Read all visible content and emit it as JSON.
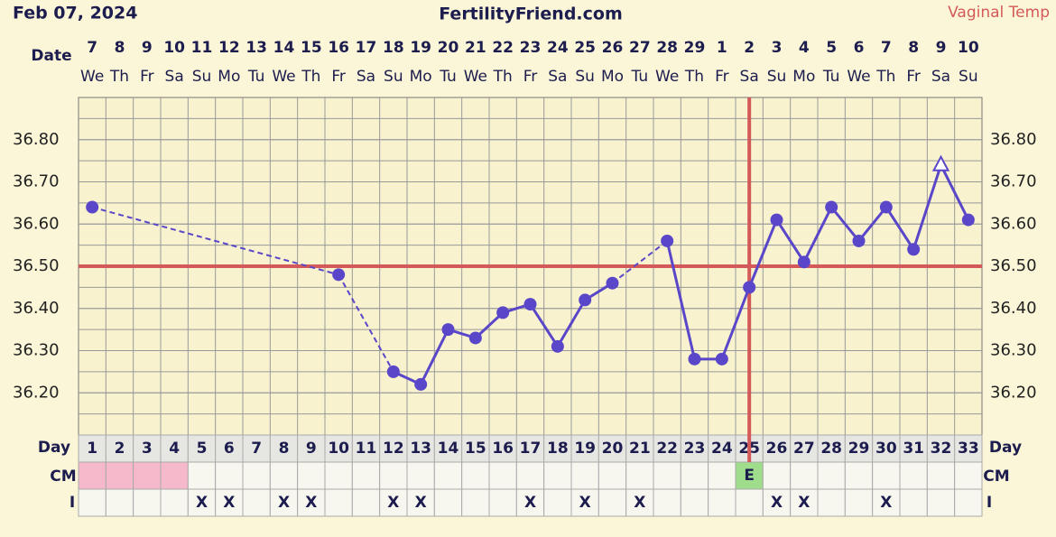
{
  "chart_data": {
    "type": "line",
    "title": "FertilityFriend.com",
    "date_text": "Feb 07, 2024",
    "date_label": "Date",
    "day_label": "Day",
    "cm_label": "CM",
    "i_label": "I",
    "dates": [
      "7",
      "8",
      "9",
      "10",
      "11",
      "12",
      "13",
      "14",
      "15",
      "16",
      "17",
      "18",
      "19",
      "20",
      "21",
      "22",
      "23",
      "24",
      "25",
      "26",
      "27",
      "28",
      "29",
      "1",
      "2",
      "3",
      "4",
      "5",
      "6",
      "7",
      "8",
      "9",
      "10"
    ],
    "weekdays": [
      "We",
      "Th",
      "Fr",
      "Sa",
      "Su",
      "Mo",
      "Tu",
      "We",
      "Th",
      "Fr",
      "Sa",
      "Su",
      "Mo",
      "Tu",
      "We",
      "Th",
      "Fr",
      "Sa",
      "Su",
      "Mo",
      "Tu",
      "We",
      "Th",
      "Fr",
      "Sa",
      "Su",
      "Mo",
      "Tu",
      "We",
      "Th",
      "Fr",
      "Sa",
      "Su"
    ],
    "categories": [
      1,
      2,
      3,
      4,
      5,
      6,
      7,
      8,
      9,
      10,
      11,
      12,
      13,
      14,
      15,
      16,
      17,
      18,
      19,
      20,
      21,
      22,
      23,
      24,
      25,
      26,
      27,
      28,
      29,
      30,
      31,
      32,
      33
    ],
    "series": [
      {
        "name": "Vaginal Temp",
        "color": "#5a46c8",
        "values": [
          36.64,
          null,
          null,
          null,
          null,
          null,
          null,
          null,
          null,
          36.48,
          null,
          36.25,
          36.22,
          36.35,
          36.33,
          36.39,
          36.41,
          36.31,
          36.42,
          36.46,
          null,
          36.56,
          36.28,
          36.28,
          36.45,
          36.61,
          36.51,
          36.64,
          36.56,
          36.64,
          36.54,
          36.74,
          36.61
        ],
        "markers": [
          "circle",
          null,
          null,
          null,
          null,
          null,
          null,
          null,
          null,
          "circle",
          null,
          "circle",
          "circle",
          "circle",
          "circle",
          "circle",
          "circle",
          "circle",
          "circle",
          "circle",
          null,
          "circle",
          "circle",
          "circle",
          "circle",
          "circle",
          "circle",
          "circle",
          "circle",
          "circle",
          "circle",
          "open-triangle",
          "circle"
        ]
      }
    ],
    "ylim": [
      36.1,
      36.9
    ],
    "yticks": [
      {
        "value": 36.2,
        "label": "36.20"
      },
      {
        "value": 36.3,
        "label": "36.30"
      },
      {
        "value": 36.4,
        "label": "36.40"
      },
      {
        "value": 36.5,
        "label": "36.50"
      },
      {
        "value": 36.6,
        "label": "36.60"
      },
      {
        "value": 36.7,
        "label": "36.70"
      },
      {
        "value": 36.8,
        "label": "36.80"
      }
    ],
    "coverline": 36.5,
    "coverline_color": "#d45a5a",
    "ovulation_day": 25,
    "cm": [
      null,
      null,
      null,
      null,
      null,
      null,
      null,
      null,
      null,
      null,
      null,
      null,
      null,
      null,
      null,
      null,
      null,
      null,
      null,
      null,
      null,
      null,
      null,
      null,
      "E",
      null,
      null,
      null,
      null,
      null,
      null,
      null,
      null
    ],
    "cm_colors": [
      "#f6b9cc",
      "#f6b9cc",
      "#f6b9cc",
      "#f6b9cc",
      null,
      null,
      null,
      null,
      null,
      null,
      null,
      null,
      null,
      null,
      null,
      null,
      null,
      null,
      null,
      null,
      null,
      null,
      null,
      null,
      "#9fdc8c",
      null,
      null,
      null,
      null,
      null,
      null,
      null,
      null
    ],
    "intercourse": [
      null,
      null,
      null,
      null,
      "X",
      "X",
      null,
      "X",
      "X",
      null,
      null,
      "X",
      "X",
      null,
      null,
      null,
      "X",
      null,
      "X",
      null,
      "X",
      null,
      null,
      null,
      null,
      "X",
      "X",
      null,
      null,
      "X",
      null,
      null,
      null
    ]
  }
}
